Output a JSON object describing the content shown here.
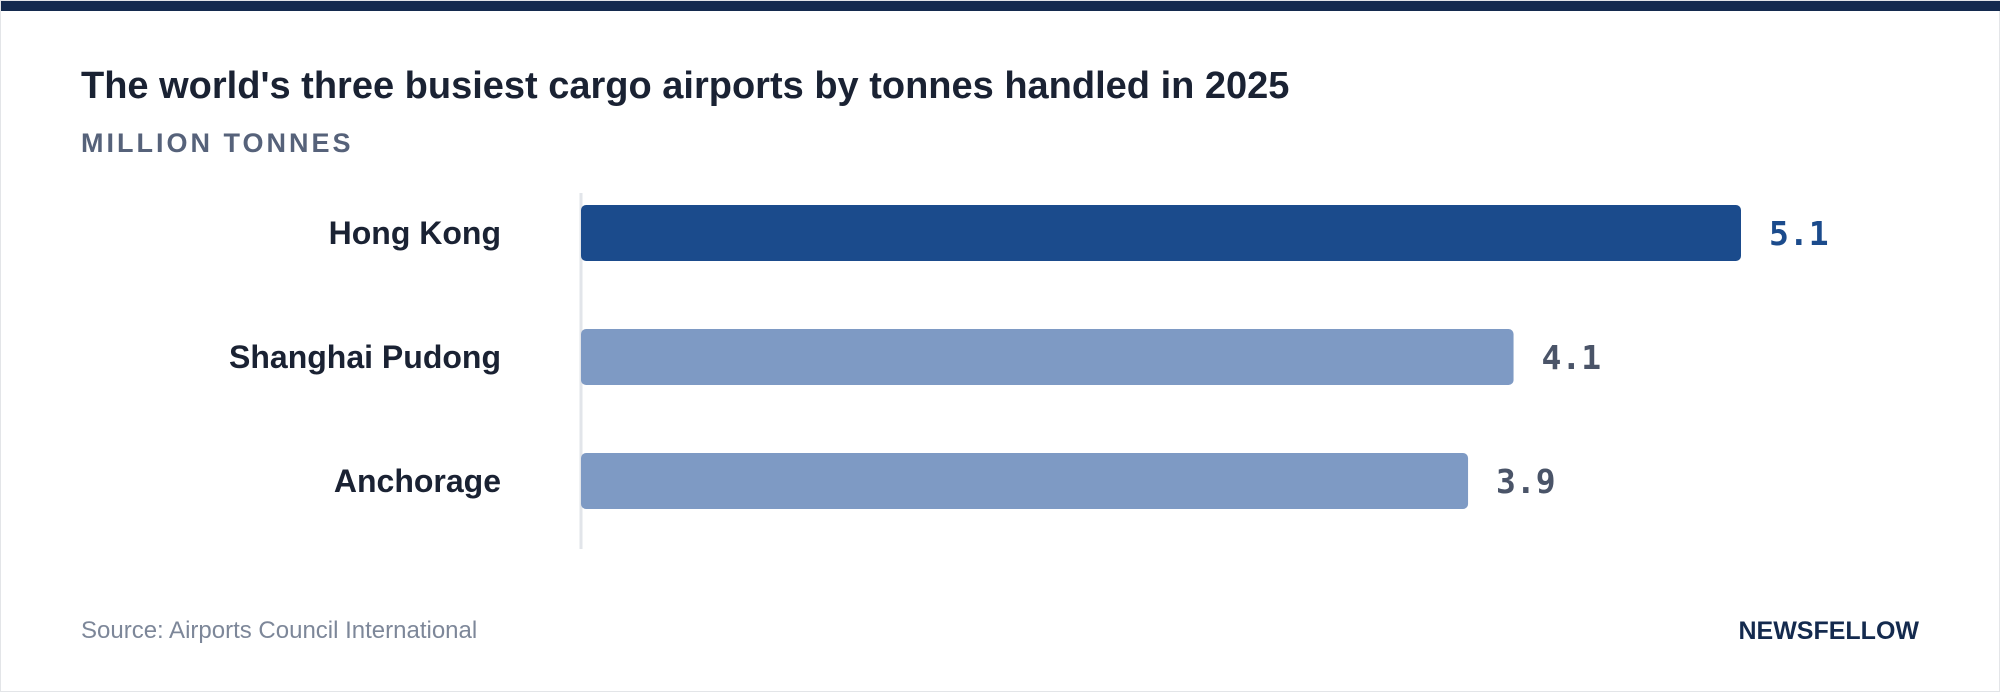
{
  "header": {
    "title": "The world's three busiest cargo airports by tonnes handled in 2025",
    "subtitle": "MILLION TONNES"
  },
  "footer": {
    "source": "Source: Airports Council International",
    "brand": "NEWSFELLOW"
  },
  "colors": {
    "top_bar": "#142a4e",
    "highlight_bar": "#1b4b8c",
    "other_bars": "#7e9ac4",
    "highlight_label": "#1b4b8c",
    "other_labels": "#4a5468"
  },
  "chart_data": {
    "type": "bar",
    "orientation": "horizontal",
    "categories": [
      "Hong Kong",
      "Shanghai Pudong",
      "Anchorage"
    ],
    "values": [
      5.1,
      4.1,
      3.9
    ],
    "value_labels": [
      "5.1",
      "4.1",
      "3.9"
    ],
    "highlight_index": 0,
    "title": "The world's three busiest cargo airports by tonnes handled in 2025",
    "xlabel": "",
    "ylabel": "",
    "grid": false,
    "legend": "none"
  }
}
